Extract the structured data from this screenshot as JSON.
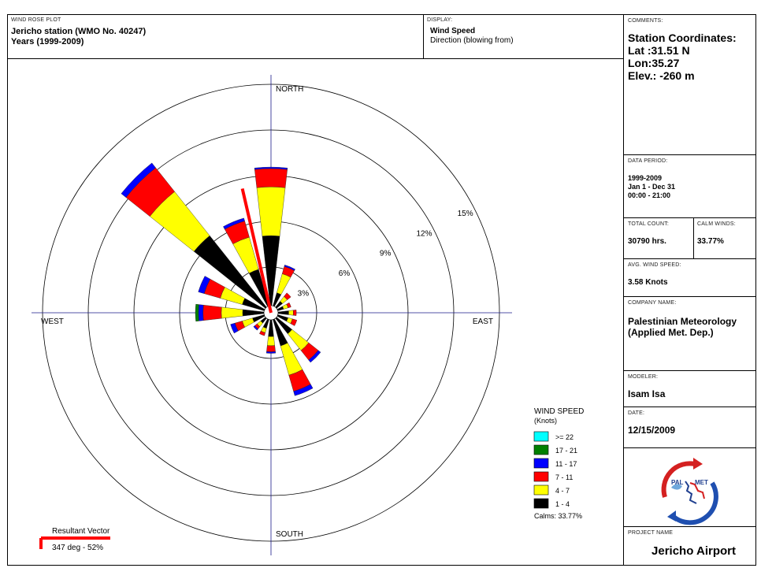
{
  "header": {
    "plot_caption": "WIND ROSE PLOT",
    "station": "Jericho station (WMO No. 40247)",
    "years": "Years (1999-2009)",
    "display_caption": "DISPLAY:",
    "display_value": "Wind Speed",
    "display_sub": "Direction (blowing from)"
  },
  "side": {
    "comments_caption": "COMMENTS:",
    "coords_title": "Station Coordinates:",
    "lat": "Lat :31.51 N",
    "lon": "Lon:35.27",
    "elev": "Elev.: -260 m",
    "period_caption": "DATA PERIOD:",
    "period_years": "1999-2009",
    "period_days": "Jan 1 - Dec 31",
    "period_hours": "00:00  -  21:00",
    "total_caption": "TOTAL COUNT:",
    "total_value": "30790 hrs.",
    "calm_caption": "CALM WINDS:",
    "calm_value": "33.77%",
    "avg_caption": "AVG. WIND SPEED:",
    "avg_value": "3.58 Knots",
    "company_caption": "COMPANY NAME:",
    "company_line1": "Palestinian Meteorology",
    "company_line2": "(Applied Met.  Dep.)",
    "modeler_caption": "MODELER:",
    "modeler_value": "Isam Isa",
    "date_caption": "DATE:",
    "date_value": "12/15/2009",
    "logo_text1": "PAL",
    "logo_text2": "MET",
    "project_caption": "PROJECT NAME",
    "project_value": "Jericho Airport"
  },
  "chart_data": {
    "type": "windrose",
    "directions_deg": [
      0,
      22.5,
      45,
      67.5,
      90,
      112.5,
      135,
      157.5,
      180,
      202.5,
      225,
      247.5,
      270,
      292.5,
      315,
      337.5
    ],
    "radial_ticks": [
      3,
      6,
      9,
      12,
      15
    ],
    "radial_tick_labels": [
      "3%",
      "6%",
      "9%",
      "12%",
      "15%"
    ],
    "radial_max": 15,
    "cardinal_labels": {
      "north": "NORTH",
      "east": "EAST",
      "south": "SOUTH",
      "west": "WEST"
    },
    "speed_bins": [
      {
        "label": "1 - 4",
        "color": "#000000"
      },
      {
        "label": "4 - 7",
        "color": "#ffff00"
      },
      {
        "label": "7 - 11",
        "color": "#ff0000"
      },
      {
        "label": "11 - 17",
        "color": "#0000ff"
      },
      {
        "label": "17 - 21",
        "color": "#008000"
      },
      {
        "label": ">= 22",
        "color": "#00ffff"
      }
    ],
    "frequencies": [
      [
        4.6,
        3.2,
        1.2,
        0.1,
        0,
        0
      ],
      [
        0.9,
        1.3,
        0.5,
        0.1,
        0,
        0
      ],
      [
        0.5,
        0.4,
        0.3,
        0,
        0,
        0
      ],
      [
        0.4,
        0.3,
        0.2,
        0,
        0,
        0
      ],
      [
        0.7,
        0.3,
        0.2,
        0,
        0,
        0
      ],
      [
        0.7,
        0.3,
        0.3,
        0,
        0,
        0
      ],
      [
        1.3,
        1.4,
        0.8,
        0.2,
        0,
        0
      ],
      [
        1.8,
        2.0,
        1.1,
        0.3,
        0,
        0
      ],
      [
        1.1,
        0.6,
        0.4,
        0.1,
        0,
        0
      ],
      [
        0.6,
        0.3,
        0.2,
        0,
        0,
        0
      ],
      [
        0.4,
        0.3,
        0.2,
        0.1,
        0,
        0
      ],
      [
        0.8,
        0.7,
        0.5,
        0.3,
        0,
        0
      ],
      [
        1.4,
        1.4,
        1.2,
        0.3,
        0.2,
        0
      ],
      [
        1.5,
        1.5,
        1.1,
        0.4,
        0,
        0
      ],
      [
        6.0,
        3.7,
        2.0,
        0.4,
        0,
        0
      ],
      [
        2.5,
        2.2,
        1.1,
        0.2,
        0,
        0
      ]
    ],
    "resultant_vector": {
      "direction_deg": 347,
      "percent": 52,
      "label": "Resultant Vector",
      "value_label": "347 deg - 52%"
    },
    "legend": {
      "title": "WIND SPEED",
      "subtitle": "(Knots)",
      "placement": "bottom-right"
    },
    "calms_label": "Calms: 33.77%"
  }
}
